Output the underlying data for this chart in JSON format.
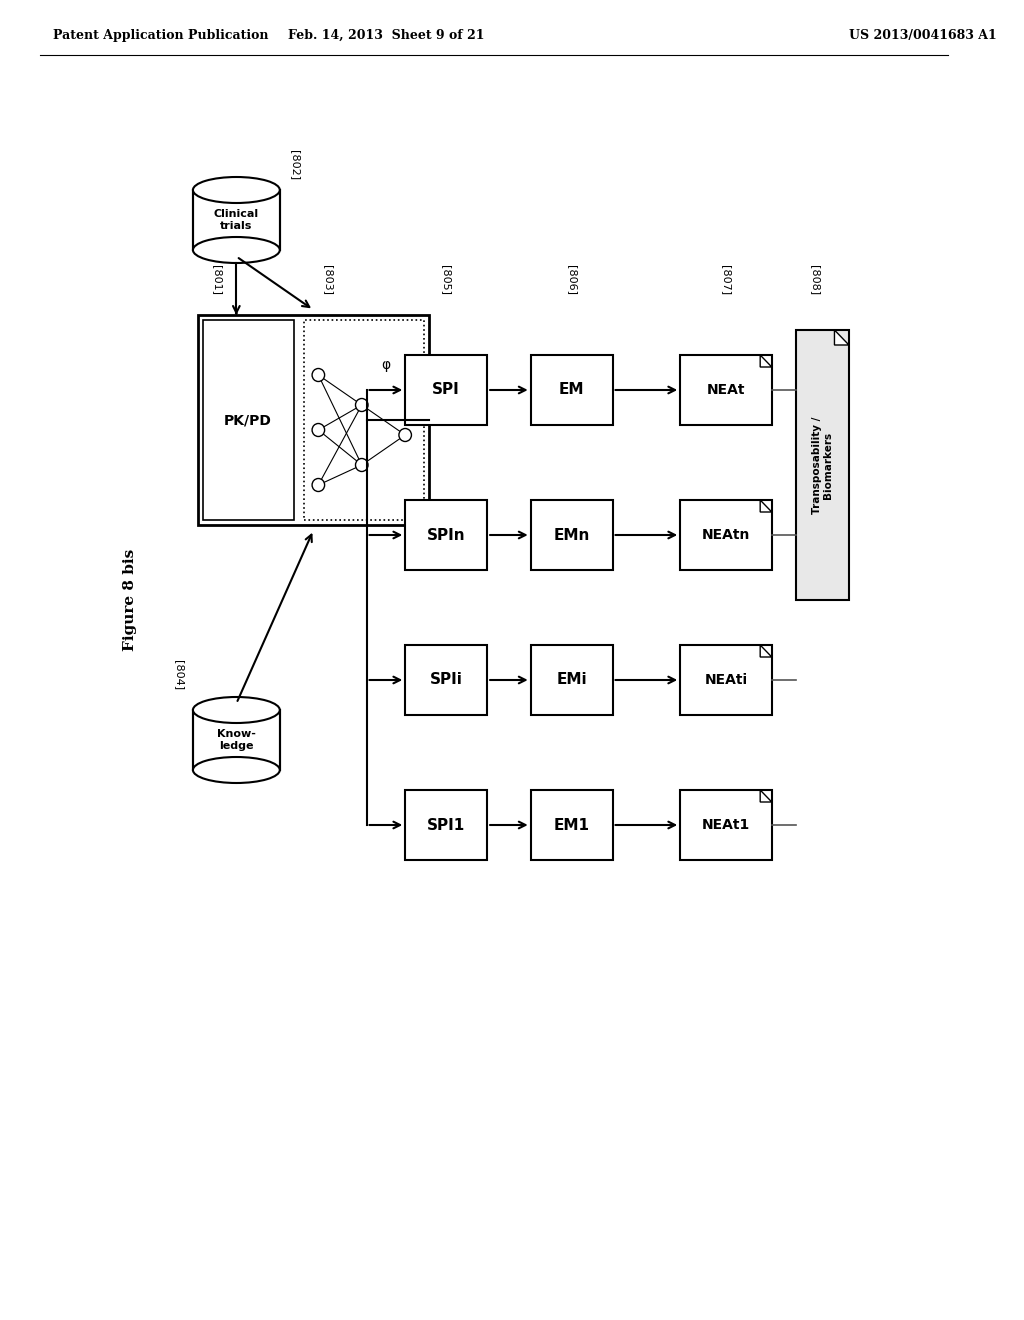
{
  "header_left": "Patent Application Publication",
  "header_center": "Feb. 14, 2013  Sheet 9 of 21",
  "header_right": "US 2013/0041683 A1",
  "figure_label": "Figure 8 bis",
  "bg_color": "#ffffff",
  "text_color": "#000000",
  "box_color": "#000000",
  "box_fill": "#ffffff",
  "label_802": "[802]",
  "label_801": "[801]",
  "label_803": "[803]",
  "label_804": "[804]",
  "label_805": "[805]",
  "label_806": "[806]",
  "label_807": "[807]",
  "label_808": "[808]",
  "clinical_trials": "Clinical\ntrials",
  "knowledge": "Know-\nledge",
  "pkpd": "PK/PD",
  "rows": [
    {
      "spi": "SPI",
      "em": "EM",
      "nea": "NEAt"
    },
    {
      "spi": "SPIn",
      "em": "EMn",
      "nea": "NEAtn"
    },
    {
      "spi": "SPIi",
      "em": "EMi",
      "nea": "NEAti"
    },
    {
      "spi": "SPI1",
      "em": "EM1",
      "nea": "NEAt1"
    }
  ],
  "transposability": "Transposability /\nBiomarkers"
}
